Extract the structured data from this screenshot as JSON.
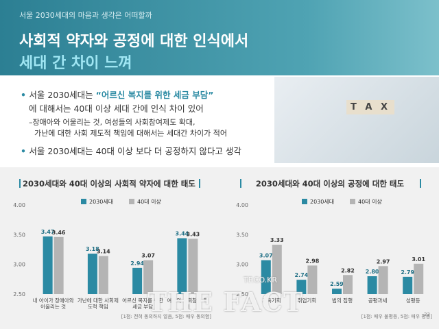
{
  "header": {
    "kicker": "서울 2030세대의 마음과 생각은 어떠할까",
    "title_line1": "사회적 약자와 공정에 대한 인식에서",
    "title_line2": "세대 간 차이 느껴"
  },
  "bullets": [
    {
      "lead": "서울 2030세대는 ",
      "highlight": "“어르신 복지를 위한 세금 부담”",
      "rest": "에 대해서는 40대 이상 세대 간에 인식 차이 있어"
    },
    {
      "sub1": "–장애아와 어울리는 것, 여성들의 사회참여제도 확대,",
      "sub2": "가난에 대한 사회 제도적 책임에 대해서는 세대간 차이가 적어"
    },
    {
      "lead": "서울 2030세대는 40대 이상 보다 더 공정하지 않다고 생각"
    }
  ],
  "image_text": "T A X",
  "watermark": "THE FACT",
  "watermark_sub": "TF.CO.KR",
  "page_number": "23",
  "chart_data": [
    {
      "type": "bar",
      "title": "2030세대와 40대 이상의 사회적 약자에 대한 태도",
      "categories": [
        "내 아이가 장애아와 어울리는 것",
        "가난에 대한 사회제도적 책임",
        "어르신 복지를 위한 세금 부담",
        "여성의 사회참여 확대"
      ],
      "series": [
        {
          "name": "2030세대",
          "color": "#2b8aa3",
          "values": [
            3.47,
            3.18,
            2.94,
            3.44
          ]
        },
        {
          "name": "40대 이상",
          "color": "#b4b4b4",
          "values": [
            3.46,
            3.14,
            3.07,
            3.43
          ]
        }
      ],
      "ylim": [
        2.5,
        4
      ],
      "yticks": [
        {
          "value": 2.5,
          "label": "2.50"
        },
        {
          "value": 3,
          "label": "3.00"
        },
        {
          "value": 3.5,
          "label": "3.50"
        },
        {
          "value": 4,
          "label": "4.00"
        }
      ],
      "grid": false,
      "note": "[1점: 전혀 동의하지 않음, 5점: 매우 동의함]"
    },
    {
      "type": "bar",
      "title": "2030세대와 40대 이상의 공정에 대한 태도",
      "categories": [
        "교육기회",
        "취업기회",
        "법의 집행",
        "공평과세",
        "성평등"
      ],
      "series": [
        {
          "name": "2030세대",
          "color": "#2b8aa3",
          "values": [
            3.07,
            2.74,
            2.59,
            2.8,
            2.79
          ],
          "value_labels": [
            "3.07",
            "2.74",
            "2.59",
            "2.80",
            "2.79"
          ]
        },
        {
          "name": "40대 이상",
          "color": "#b4b4b4",
          "values": [
            3.33,
            2.98,
            2.82,
            2.97,
            3.01
          ]
        }
      ],
      "ylim": [
        2.5,
        4
      ],
      "yticks": [
        {
          "value": 2.5,
          "label": "2.50"
        },
        {
          "value": 3,
          "label": "3.00"
        },
        {
          "value": 3.5,
          "label": "3.50"
        },
        {
          "value": 4,
          "label": "4.00"
        }
      ],
      "grid": false,
      "note": "[1점: 매우 불평등, 5점: 매우 평등]"
    }
  ]
}
